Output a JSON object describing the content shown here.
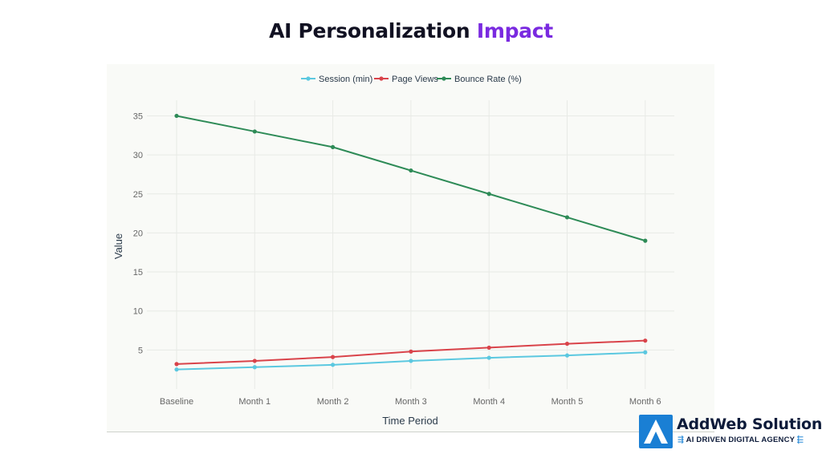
{
  "page": {
    "title_part1": "AI Personalization",
    "title_part2": "Impact"
  },
  "brand": {
    "name": "AddWeb Solution",
    "tagline": "AI DRIVEN DIGITAL AGENCY",
    "logo_icon": "addweb-logo-icon"
  },
  "colors": {
    "title_accent": "#7a2ae0",
    "session": "#5bc8e0",
    "page_views": "#d9434a",
    "bounce_rate": "#2e8b57",
    "grid": "#e8eae6",
    "axis_text": "#666666"
  },
  "chart_data": {
    "type": "line",
    "title": "AI Personalization Impact",
    "xlabel": "Time Period",
    "ylabel": "Value",
    "categories": [
      "Baseline",
      "Month 1",
      "Month 2",
      "Month 3",
      "Month 4",
      "Month 5",
      "Month 6"
    ],
    "ylim": [
      0,
      37
    ],
    "yticks": [
      5,
      10,
      15,
      20,
      25,
      30,
      35
    ],
    "grid": true,
    "legend_position": "top-center",
    "series": [
      {
        "name": "Session (min)",
        "color": "#5bc8e0",
        "values": [
          2.5,
          2.8,
          3.1,
          3.6,
          4.0,
          4.3,
          4.7
        ]
      },
      {
        "name": "Page Views",
        "color": "#d9434a",
        "values": [
          3.2,
          3.6,
          4.1,
          4.8,
          5.3,
          5.8,
          6.2
        ]
      },
      {
        "name": "Bounce Rate (%)",
        "color": "#2e8b57",
        "values": [
          35,
          33,
          31,
          28,
          25,
          22,
          19
        ]
      }
    ]
  }
}
